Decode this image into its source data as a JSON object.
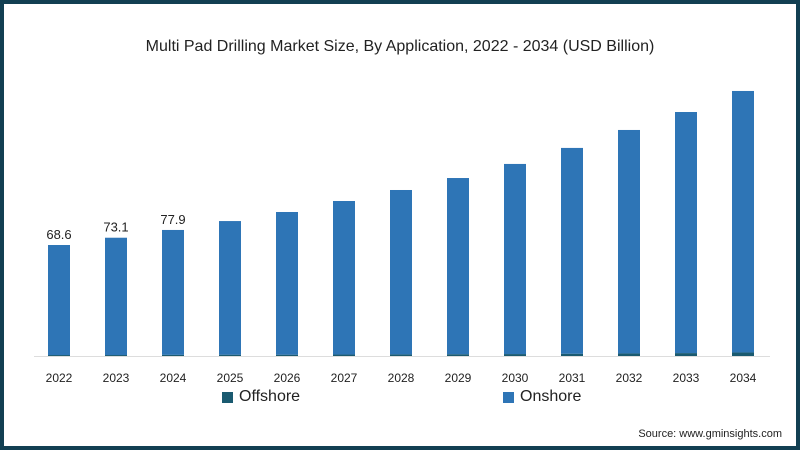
{
  "chart_data": {
    "type": "bar",
    "stacked": true,
    "title": "Multi Pad Drilling Market Size, By Application, 2022 - 2034 (USD Billion)",
    "categories": [
      "2022",
      "2023",
      "2024",
      "2025",
      "2026",
      "2027",
      "2028",
      "2029",
      "2030",
      "2031",
      "2032",
      "2033",
      "2034"
    ],
    "series": [
      {
        "name": "Offshore",
        "color": "#1a5a70",
        "values": [
          0.6,
          0.6,
          0.7,
          0.8,
          0.8,
          0.9,
          1.0,
          1.1,
          1.2,
          1.4,
          1.6,
          1.8,
          2.2
        ]
      },
      {
        "name": "Onshore",
        "color": "#2e75b6",
        "values": [
          68.0,
          72.5,
          77.2,
          82.6,
          88.2,
          94.9,
          101.6,
          108.9,
          117.5,
          127.2,
          138.1,
          149.0,
          161.6
        ]
      }
    ],
    "data_labels": {
      "2022": "68.6",
      "2023": "73.1",
      "2024": "77.9"
    },
    "ylim": [
      0,
      175
    ],
    "grid": false,
    "legend": "bottom"
  },
  "source": "Source: www.gminsights.com"
}
